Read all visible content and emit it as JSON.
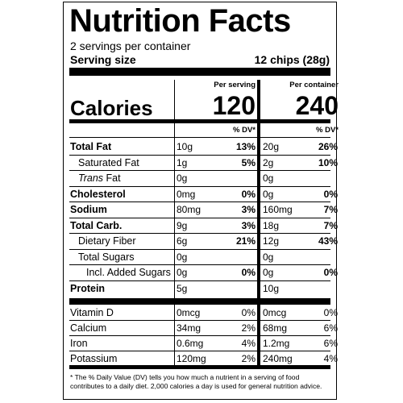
{
  "title": "Nutrition Facts",
  "servings_per_container": "2 servings per container",
  "serving_size_label": "Serving size",
  "serving_size_value": "12 chips (28g)",
  "per_serving_header": "Per serving",
  "per_container_header": "Per container",
  "calories_label": "Calories",
  "calories_serving": "120",
  "calories_container": "240",
  "dv_header": "% DV*",
  "nutrients": [
    {
      "name": "Total Fat",
      "serving_amt": "10g",
      "serving_dv": "13%",
      "container_amt": "20g",
      "container_dv": "26%"
    },
    {
      "name": "Saturated Fat",
      "serving_amt": "1g",
      "serving_dv": "5%",
      "container_amt": "2g",
      "container_dv": "10%"
    },
    {
      "name_italic": "Trans",
      "name_rest": " Fat",
      "serving_amt": "0g",
      "serving_dv": "",
      "container_amt": "0g",
      "container_dv": ""
    },
    {
      "name": "Cholesterol",
      "serving_amt": "0mg",
      "serving_dv": "0%",
      "container_amt": "0g",
      "container_dv": "0%"
    },
    {
      "name": "Sodium",
      "serving_amt": "80mg",
      "serving_dv": "3%",
      "container_amt": "160mg",
      "container_dv": "7%"
    },
    {
      "name": "Total Carb.",
      "serving_amt": "9g",
      "serving_dv": "3%",
      "container_amt": "18g",
      "container_dv": "7%"
    },
    {
      "name": "Dietary Fiber",
      "serving_amt": "6g",
      "serving_dv": "21%",
      "container_amt": "12g",
      "container_dv": "43%"
    },
    {
      "name": "Total Sugars",
      "serving_amt": "0g",
      "serving_dv": "",
      "container_amt": "0g",
      "container_dv": ""
    },
    {
      "name": "Incl. Added Sugars",
      "serving_amt": "0g",
      "serving_dv": "0%",
      "container_amt": "0g",
      "container_dv": "0%"
    },
    {
      "name": "Protein",
      "serving_amt": "5g",
      "serving_dv": "",
      "container_amt": "10g",
      "container_dv": ""
    }
  ],
  "vitamins": [
    {
      "name": "Vitamin D",
      "serving_amt": "0mcg",
      "serving_dv": "0%",
      "container_amt": "0mcg",
      "container_dv": "0%"
    },
    {
      "name": "Calcium",
      "serving_amt": "34mg",
      "serving_dv": "2%",
      "container_amt": "68mg",
      "container_dv": "6%"
    },
    {
      "name": "Iron",
      "serving_amt": "0.6mg",
      "serving_dv": "4%",
      "container_amt": "1.2mg",
      "container_dv": "6%"
    },
    {
      "name": "Potassium",
      "serving_amt": "120mg",
      "serving_dv": "2%",
      "container_amt": "240mg",
      "container_dv": "4%"
    }
  ],
  "footnote": "* The % Daily Value (DV) tells you how much a nutrient in a serving of food contributes to a daily diet. 2,000 calories a day is used for general nutrition advice."
}
